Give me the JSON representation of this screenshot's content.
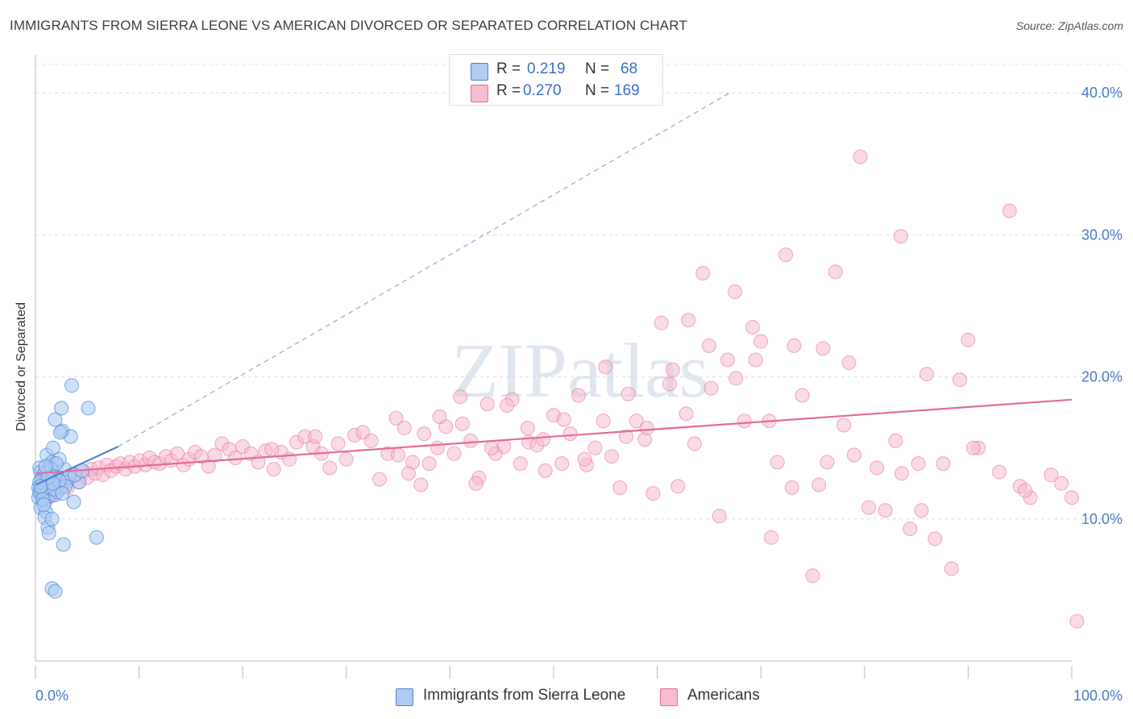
{
  "title": "IMMIGRANTS FROM SIERRA LEONE VS AMERICAN DIVORCED OR SEPARATED CORRELATION CHART",
  "source": "Source: ZipAtlas.com",
  "watermark": "ZIPatlas",
  "colors": {
    "blue": "#4a86d8",
    "blue_fill": "#aecbf2",
    "pink": "#e36b98",
    "pink_fill": "#f6bcd0",
    "tick": "#4a7ac9"
  },
  "legend": {
    "rows": [
      {
        "r_label": "R =",
        "r_value": "0.219",
        "n_label": "N =",
        "n_value": "68"
      },
      {
        "r_label": "R =",
        "r_value": "0.270",
        "n_label": "N =",
        "n_value": "169"
      }
    ]
  },
  "bottom_legend": {
    "series1": "Immigrants from Sierra Leone",
    "series2": "Americans"
  },
  "chart_data": {
    "type": "scatter",
    "xlabel": "",
    "ylabel": "Divorced or Separated",
    "xlim": [
      0,
      100
    ],
    "ylim": [
      0,
      42
    ],
    "x_tick_labels": [
      "0.0%",
      "100.0%"
    ],
    "y_ticks": [
      10,
      20,
      30,
      40
    ],
    "y_tick_labels": [
      "10.0%",
      "20.0%",
      "30.0%",
      "40.0%"
    ],
    "grid": true,
    "legend_position": "top-center",
    "series": [
      {
        "name": "Immigrants from Sierra Leone",
        "r": 0.219,
        "n": 68,
        "trend_solid": {
          "x": [
            0.0,
            8.0
          ],
          "y": [
            12.4,
            15.1
          ]
        },
        "trend_dashed": {
          "x": [
            8.0,
            67.0
          ],
          "y": [
            15.1,
            40.0
          ]
        },
        "points": [
          [
            0.3,
            12.2
          ],
          [
            0.5,
            11.8
          ],
          [
            0.6,
            12.9
          ],
          [
            0.4,
            13.6
          ],
          [
            0.8,
            12.4
          ],
          [
            0.3,
            11.5
          ],
          [
            1.0,
            12.0
          ],
          [
            0.7,
            13.1
          ],
          [
            1.2,
            12.6
          ],
          [
            0.5,
            10.8
          ],
          [
            0.9,
            11.2
          ],
          [
            1.4,
            13.8
          ],
          [
            1.1,
            14.5
          ],
          [
            0.6,
            12.7
          ],
          [
            1.5,
            12.3
          ],
          [
            0.4,
            11.9
          ],
          [
            1.8,
            13.0
          ],
          [
            2.0,
            12.5
          ],
          [
            1.3,
            11.6
          ],
          [
            0.8,
            12.1
          ],
          [
            1.6,
            14.0
          ],
          [
            2.2,
            12.8
          ],
          [
            0.5,
            13.3
          ],
          [
            1.9,
            11.7
          ],
          [
            2.5,
            12.2
          ],
          [
            2.8,
            13.5
          ],
          [
            1.0,
            10.5
          ],
          [
            1.7,
            15.0
          ],
          [
            0.9,
            10.1
          ],
          [
            2.3,
            14.2
          ],
          [
            3.0,
            12.6
          ],
          [
            1.2,
            9.4
          ],
          [
            2.6,
            16.2
          ],
          [
            3.4,
            15.8
          ],
          [
            1.9,
            17.0
          ],
          [
            2.4,
            16.1
          ],
          [
            3.5,
            19.4
          ],
          [
            2.5,
            17.8
          ],
          [
            5.1,
            17.8
          ],
          [
            1.3,
            9.0
          ],
          [
            2.7,
            8.2
          ],
          [
            5.9,
            8.7
          ],
          [
            1.6,
            5.1
          ],
          [
            1.9,
            4.9
          ],
          [
            3.7,
            11.2
          ],
          [
            4.2,
            12.6
          ],
          [
            0.6,
            12.0
          ],
          [
            1.4,
            12.4
          ],
          [
            0.9,
            13.2
          ],
          [
            2.1,
            11.9
          ],
          [
            3.2,
            12.9
          ],
          [
            1.1,
            12.2
          ],
          [
            0.7,
            11.4
          ],
          [
            1.5,
            13.5
          ],
          [
            2.9,
            12.3
          ],
          [
            0.4,
            12.6
          ],
          [
            1.8,
            12.1
          ],
          [
            2.3,
            12.7
          ],
          [
            3.8,
            13.1
          ],
          [
            0.8,
            11.0
          ],
          [
            1.6,
            10.0
          ],
          [
            2.0,
            13.9
          ],
          [
            1.2,
            12.9
          ],
          [
            0.5,
            12.3
          ],
          [
            2.6,
            11.8
          ],
          [
            4.5,
            13.4
          ],
          [
            1.0,
            13.7
          ],
          [
            1.7,
            12.5
          ]
        ]
      },
      {
        "name": "Americans",
        "r": 0.27,
        "n": 169,
        "trend_solid": {
          "x": [
            0.0,
            100.0
          ],
          "y": [
            13.2,
            18.4
          ]
        },
        "points": [
          [
            0.5,
            12.0
          ],
          [
            0.8,
            11.8
          ],
          [
            1.2,
            12.3
          ],
          [
            1.5,
            11.6
          ],
          [
            2.0,
            12.5
          ],
          [
            2.3,
            12.1
          ],
          [
            2.8,
            12.8
          ],
          [
            3.1,
            12.2
          ],
          [
            3.5,
            12.9
          ],
          [
            3.9,
            13.1
          ],
          [
            4.2,
            12.6
          ],
          [
            4.7,
            13.3
          ],
          [
            5.0,
            12.9
          ],
          [
            5.4,
            13.5
          ],
          [
            5.8,
            13.2
          ],
          [
            6.1,
            13.6
          ],
          [
            6.5,
            13.1
          ],
          [
            6.9,
            13.8
          ],
          [
            7.3,
            13.4
          ],
          [
            7.8,
            13.7
          ],
          [
            8.2,
            13.9
          ],
          [
            8.7,
            13.5
          ],
          [
            9.1,
            14.0
          ],
          [
            9.6,
            13.7
          ],
          [
            10.1,
            14.1
          ],
          [
            10.6,
            13.8
          ],
          [
            11.0,
            14.3
          ],
          [
            11.5,
            14.0
          ],
          [
            12.0,
            13.9
          ],
          [
            12.6,
            14.4
          ],
          [
            13.1,
            14.1
          ],
          [
            13.7,
            14.6
          ],
          [
            14.3,
            13.8
          ],
          [
            14.8,
            14.2
          ],
          [
            15.4,
            14.7
          ],
          [
            16.0,
            14.4
          ],
          [
            16.7,
            13.7
          ],
          [
            17.3,
            14.5
          ],
          [
            18.0,
            15.3
          ],
          [
            18.7,
            14.9
          ],
          [
            19.3,
            14.3
          ],
          [
            20.0,
            15.1
          ],
          [
            20.8,
            14.6
          ],
          [
            21.5,
            14.0
          ],
          [
            22.2,
            14.8
          ],
          [
            23.0,
            13.5
          ],
          [
            23.7,
            14.7
          ],
          [
            24.5,
            14.2
          ],
          [
            25.2,
            15.4
          ],
          [
            26.0,
            15.8
          ],
          [
            26.8,
            15.1
          ],
          [
            27.6,
            14.6
          ],
          [
            28.4,
            13.6
          ],
          [
            29.2,
            15.3
          ],
          [
            30.0,
            14.2
          ],
          [
            30.8,
            15.9
          ],
          [
            31.6,
            16.1
          ],
          [
            32.4,
            15.5
          ],
          [
            33.2,
            12.8
          ],
          [
            34.0,
            14.6
          ],
          [
            34.8,
            17.1
          ],
          [
            35.6,
            16.4
          ],
          [
            36.4,
            14.0
          ],
          [
            37.2,
            12.4
          ],
          [
            38.0,
            13.9
          ],
          [
            38.8,
            15.0
          ],
          [
            39.6,
            16.5
          ],
          [
            40.4,
            14.6
          ],
          [
            41.2,
            16.7
          ],
          [
            42.0,
            15.5
          ],
          [
            42.8,
            12.9
          ],
          [
            43.6,
            18.1
          ],
          [
            44.4,
            14.6
          ],
          [
            45.2,
            15.1
          ],
          [
            46.0,
            18.4
          ],
          [
            46.8,
            13.9
          ],
          [
            47.6,
            15.4
          ],
          [
            48.4,
            15.2
          ],
          [
            49.2,
            13.4
          ],
          [
            50.0,
            17.3
          ],
          [
            50.8,
            13.9
          ],
          [
            51.6,
            16.0
          ],
          [
            52.4,
            18.7
          ],
          [
            53.2,
            13.8
          ],
          [
            54.0,
            15.0
          ],
          [
            54.8,
            16.9
          ],
          [
            55.6,
            14.4
          ],
          [
            56.4,
            12.2
          ],
          [
            57.2,
            18.8
          ],
          [
            58.0,
            16.9
          ],
          [
            58.8,
            15.6
          ],
          [
            59.6,
            11.8
          ],
          [
            60.4,
            23.8
          ],
          [
            61.2,
            19.5
          ],
          [
            62.0,
            12.3
          ],
          [
            62.8,
            17.4
          ],
          [
            63.6,
            15.3
          ],
          [
            64.4,
            27.3
          ],
          [
            65.2,
            19.2
          ],
          [
            66.0,
            10.2
          ],
          [
            66.8,
            21.2
          ],
          [
            67.6,
            19.9
          ],
          [
            68.4,
            16.9
          ],
          [
            69.2,
            23.5
          ],
          [
            70.0,
            22.5
          ],
          [
            70.8,
            16.9
          ],
          [
            71.6,
            14.0
          ],
          [
            72.4,
            28.6
          ],
          [
            73.2,
            22.2
          ],
          [
            74.0,
            18.7
          ],
          [
            75.0,
            6.0
          ],
          [
            75.6,
            12.4
          ],
          [
            76.4,
            14.0
          ],
          [
            77.2,
            27.4
          ],
          [
            78.0,
            16.6
          ],
          [
            79.0,
            14.5
          ],
          [
            79.6,
            35.5
          ],
          [
            80.4,
            10.8
          ],
          [
            81.2,
            13.6
          ],
          [
            82.0,
            10.6
          ],
          [
            83.0,
            15.5
          ],
          [
            83.6,
            13.2
          ],
          [
            84.4,
            9.3
          ],
          [
            85.2,
            13.9
          ],
          [
            86.0,
            20.2
          ],
          [
            86.8,
            8.6
          ],
          [
            87.6,
            13.9
          ],
          [
            88.4,
            6.5
          ],
          [
            89.2,
            19.8
          ],
          [
            90.0,
            22.6
          ],
          [
            91.0,
            15.0
          ],
          [
            93.0,
            13.3
          ],
          [
            94.0,
            31.7
          ],
          [
            95.0,
            12.3
          ],
          [
            96.0,
            11.5
          ],
          [
            98.0,
            13.1
          ],
          [
            99.0,
            12.5
          ],
          [
            100.0,
            11.5
          ],
          [
            100.5,
            2.8
          ],
          [
            95.5,
            12.0
          ],
          [
            90.5,
            15.0
          ],
          [
            85.5,
            10.6
          ],
          [
            83.5,
            29.9
          ],
          [
            78.5,
            21.0
          ],
          [
            76.0,
            22.0
          ],
          [
            73.0,
            12.2
          ],
          [
            71.0,
            8.7
          ],
          [
            69.5,
            21.2
          ],
          [
            67.5,
            26.0
          ],
          [
            65.0,
            22.2
          ],
          [
            63.0,
            24.0
          ],
          [
            61.5,
            20.5
          ],
          [
            59.0,
            16.4
          ],
          [
            57.0,
            15.8
          ],
          [
            55.0,
            20.7
          ],
          [
            53.0,
            14.2
          ],
          [
            51.0,
            17.0
          ],
          [
            49.0,
            15.6
          ],
          [
            47.5,
            16.4
          ],
          [
            45.5,
            18.0
          ],
          [
            44.0,
            15.0
          ],
          [
            42.5,
            12.5
          ],
          [
            41.0,
            18.6
          ],
          [
            39.0,
            17.2
          ],
          [
            37.5,
            16.0
          ],
          [
            36.0,
            13.2
          ],
          [
            35.0,
            14.5
          ],
          [
            27.0,
            15.8
          ],
          [
            22.8,
            14.9
          ]
        ]
      }
    ]
  }
}
